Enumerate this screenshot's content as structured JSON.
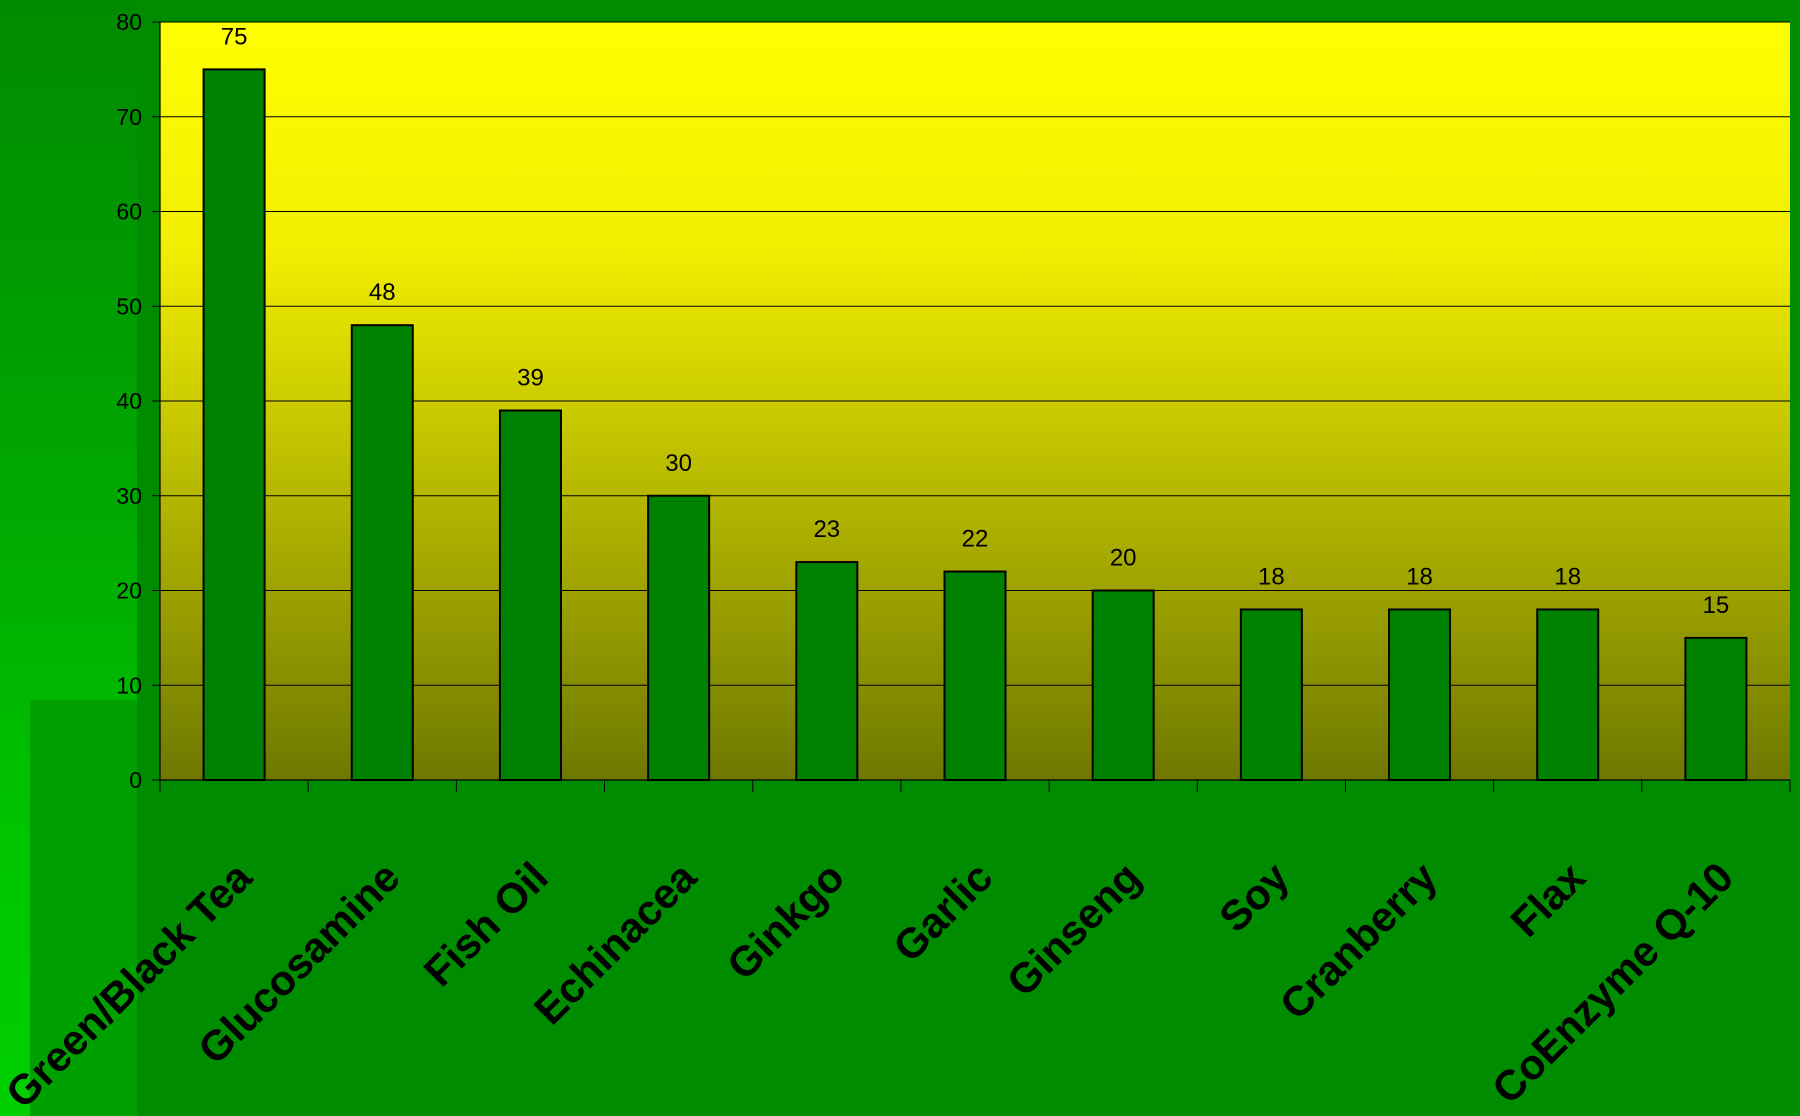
{
  "colors": {
    "background": "#008c00",
    "plot_top": "#ffff00",
    "plot_bottom": "#6e7800",
    "bar_fill": "#008200",
    "gridline": "#000000",
    "label_text": "#000000"
  },
  "chart_data": {
    "type": "bar",
    "title": "",
    "xlabel": "",
    "ylabel": "",
    "categories": [
      "Green/Black Tea",
      "Glucosamine",
      "Fish Oil",
      "Echinacea",
      "Ginkgo",
      "Garlic",
      "Ginseng",
      "Soy",
      "Cranberry",
      "Flax",
      "CoEnzyme Q-10"
    ],
    "values": [
      75,
      48,
      39,
      30,
      23,
      22,
      20,
      18,
      18,
      18,
      15
    ],
    "ylim": [
      0,
      80
    ],
    "yticks": [
      0,
      10,
      20,
      30,
      40,
      50,
      60,
      70,
      80
    ],
    "grid": true,
    "data_labels": true,
    "legend": "none"
  }
}
